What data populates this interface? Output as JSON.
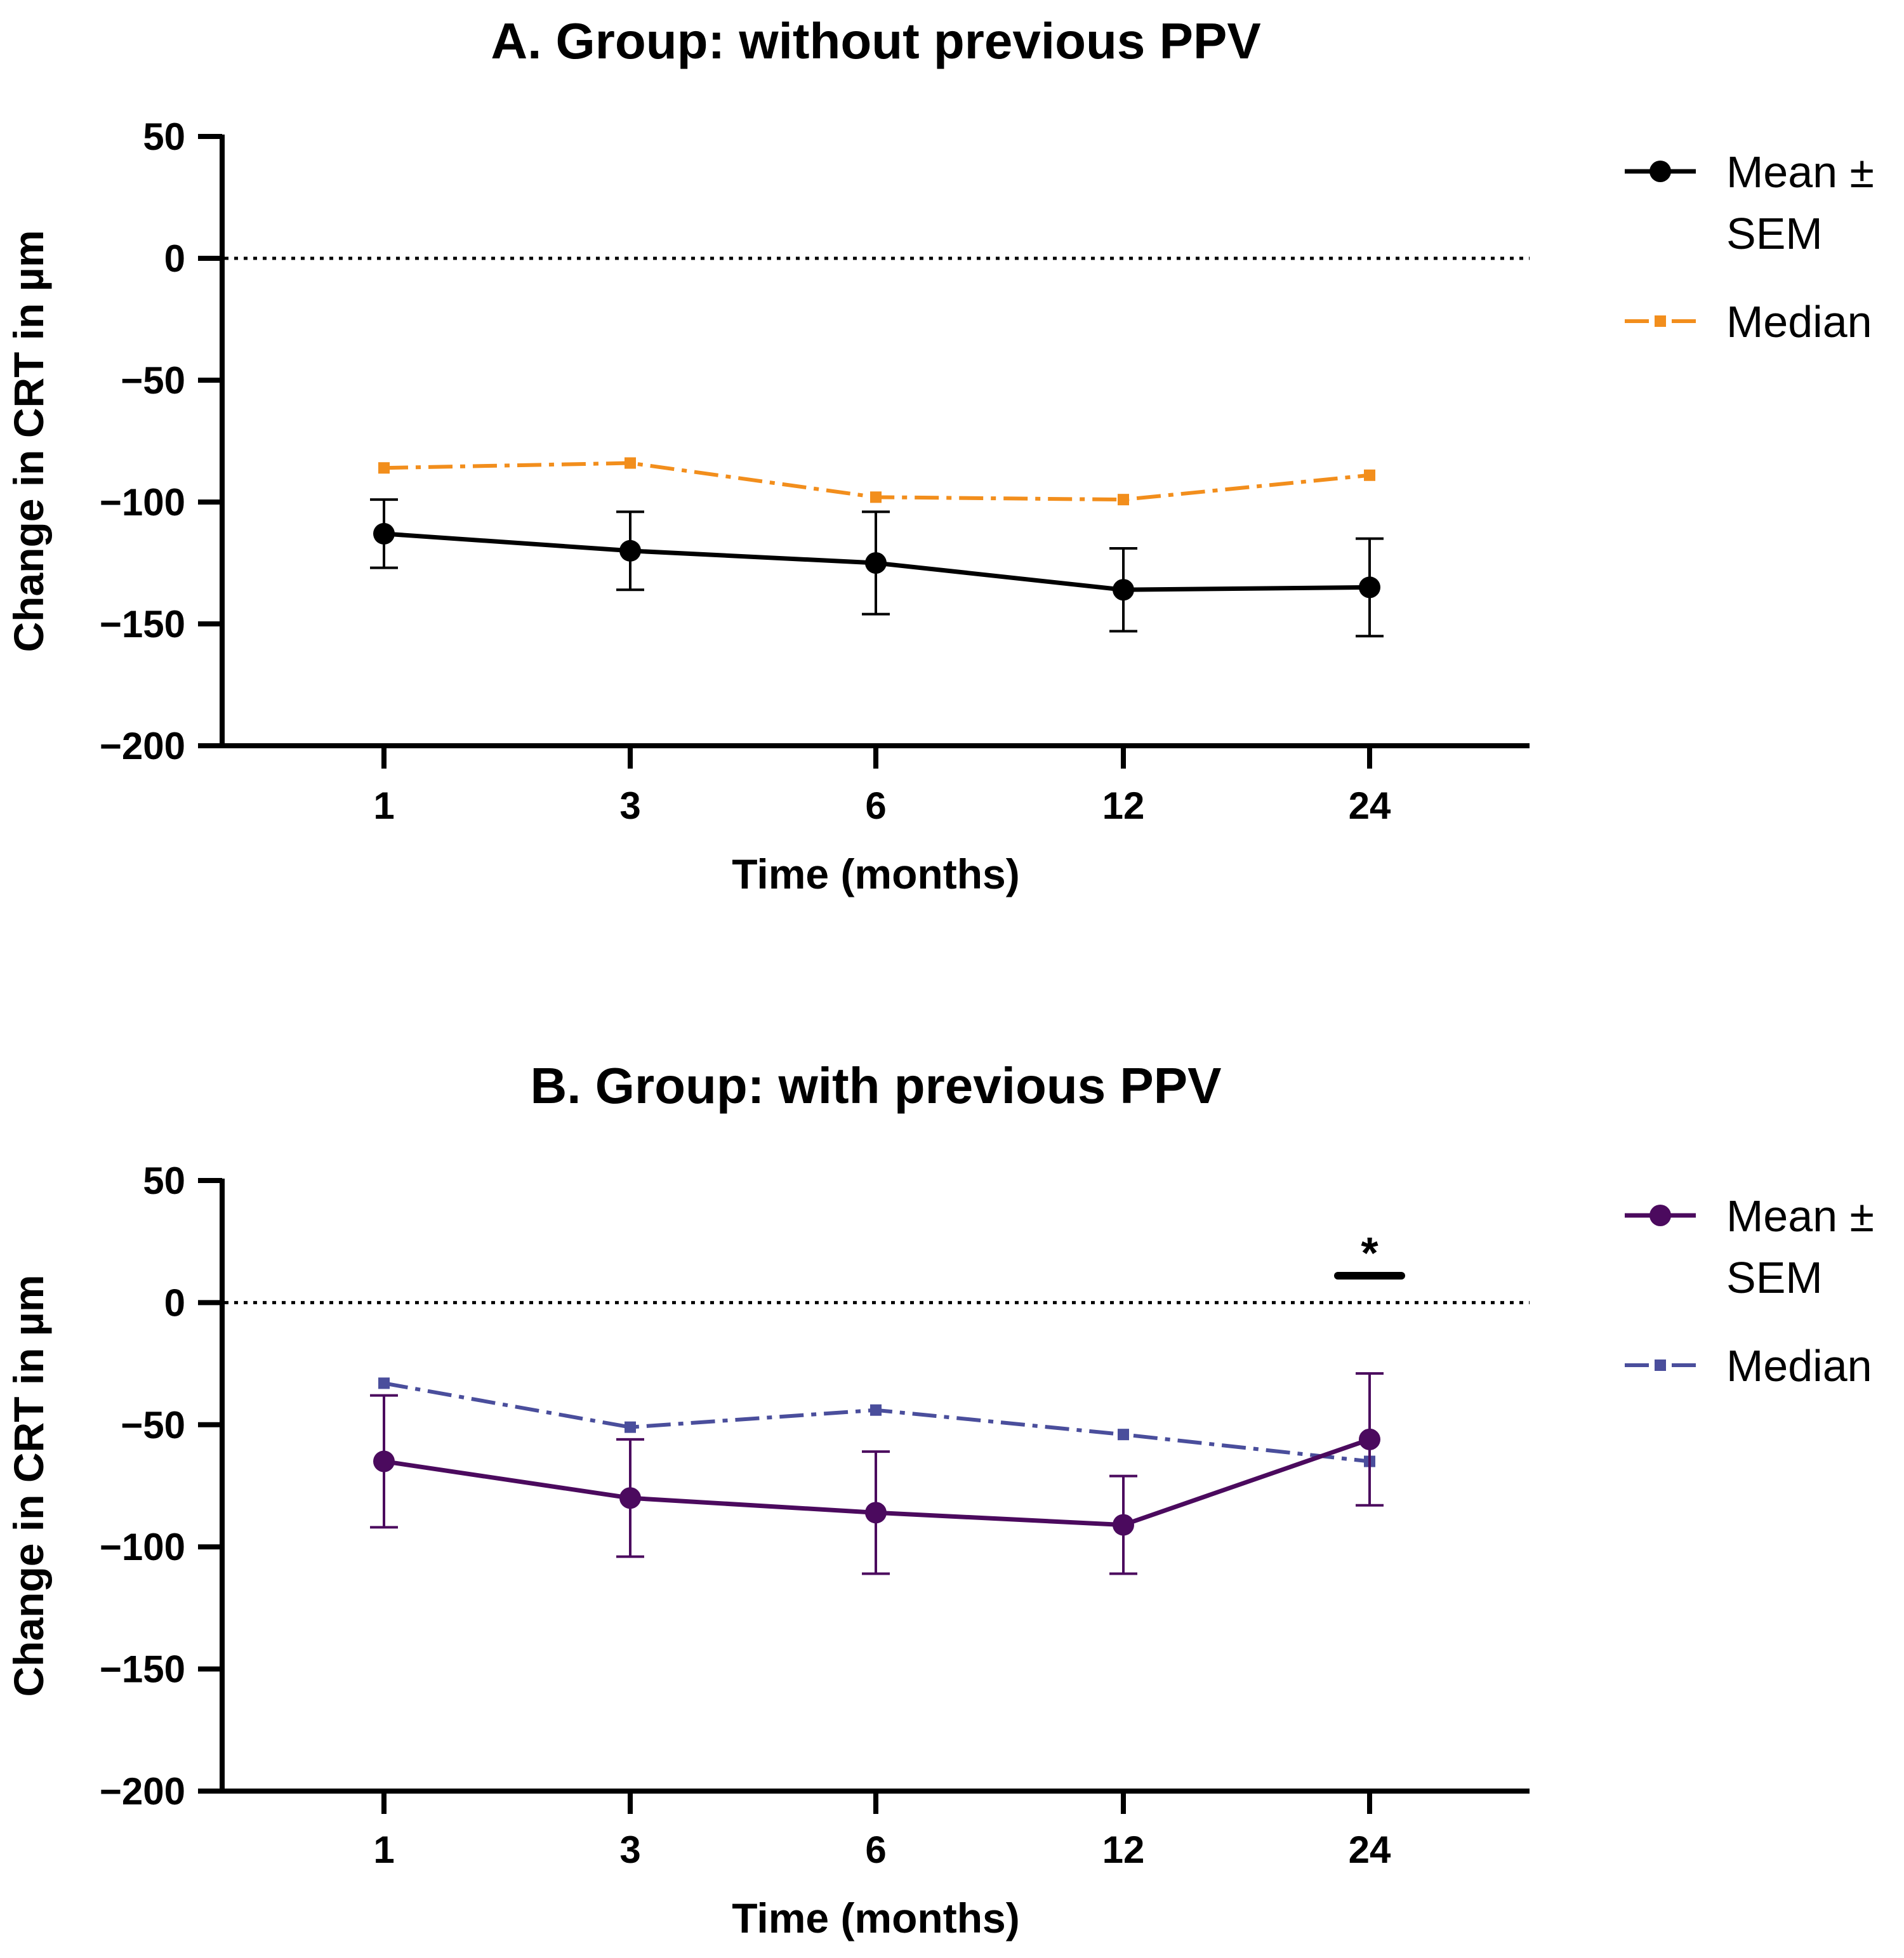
{
  "chart_data": [
    {
      "type": "line",
      "panel": "A",
      "title": "A. Group: without previous PPV",
      "xlabel": "Time (months)",
      "ylabel": "Change in CRT in µm",
      "categories": [
        "1",
        "3",
        "6",
        "12",
        "24"
      ],
      "yticks": [
        "50",
        "0",
        "-50",
        "-100",
        "-150",
        "-200"
      ],
      "ylim": [
        -200,
        50
      ],
      "reference_line": 0,
      "series": [
        {
          "name": "Mean ± SEM",
          "legend_lines": [
            "Mean ±",
            "SEM"
          ],
          "color": "#000000",
          "marker": "circle",
          "line_style": "solid",
          "values": [
            -113,
            -120,
            -125,
            -136,
            -135
          ],
          "error": [
            14,
            16,
            21,
            17,
            20
          ]
        },
        {
          "name": "Median",
          "legend_lines": [
            "Median"
          ],
          "color": "#F28E1C",
          "marker": "square",
          "line_style": "dash-dot",
          "values": [
            -86,
            -84,
            -98,
            -99,
            -89
          ]
        }
      ],
      "annotations": []
    },
    {
      "type": "line",
      "panel": "B",
      "title": "B. Group: with previous PPV",
      "xlabel": "Time (months)",
      "ylabel": "Change in CRT in µm",
      "categories": [
        "1",
        "3",
        "6",
        "12",
        "24"
      ],
      "yticks": [
        "50",
        "0",
        "-50",
        "-100",
        "-150",
        "-200"
      ],
      "ylim": [
        -200,
        50
      ],
      "reference_line": 0,
      "series": [
        {
          "name": "Mean ± SEM",
          "legend_lines": [
            "Mean ±",
            "SEM"
          ],
          "color": "#4B0A5E",
          "marker": "circle",
          "line_style": "solid",
          "values": [
            -65,
            -80,
            -86,
            -91,
            -56
          ],
          "error": [
            27,
            24,
            25,
            20,
            27
          ]
        },
        {
          "name": "Median",
          "legend_lines": [
            "Median"
          ],
          "color": "#4A4E9C",
          "marker": "square",
          "line_style": "dash-dot",
          "values": [
            -33,
            -51,
            -44,
            -54,
            -65
          ]
        }
      ],
      "annotations": [
        {
          "text": "*",
          "category": "24",
          "meaning": "significance marker"
        }
      ]
    }
  ]
}
